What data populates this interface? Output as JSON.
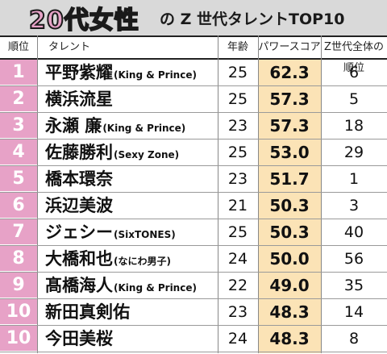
{
  "title": {
    "main": "20代女性",
    "sub": "の Z 世代タレントTOP10"
  },
  "columns": {
    "rank": "順位",
    "talent": "タレント",
    "age": "年齢",
    "power": "パワースコア",
    "overall": "Z世代全体の順位"
  },
  "colors": {
    "rank_bg": "#e7a2c7",
    "power_bg": "#fbe3b6",
    "title_bg": "#d9d9d9"
  },
  "rows": [
    {
      "rank": "1",
      "name": "平野紫耀",
      "group": "(King & Prince)",
      "age": "25",
      "power": "62.3",
      "overall": "6"
    },
    {
      "rank": "2",
      "name": "横浜流星",
      "group": "",
      "age": "25",
      "power": "57.3",
      "overall": "5"
    },
    {
      "rank": "3",
      "name": "永瀬 廉",
      "group": "(King & Prince)",
      "age": "23",
      "power": "57.3",
      "overall": "18"
    },
    {
      "rank": "4",
      "name": "佐藤勝利",
      "group": "(Sexy Zone)",
      "age": "25",
      "power": "53.0",
      "overall": "29"
    },
    {
      "rank": "5",
      "name": "橋本環奈",
      "group": "",
      "age": "23",
      "power": "51.7",
      "overall": "1"
    },
    {
      "rank": "6",
      "name": "浜辺美波",
      "group": "",
      "age": "21",
      "power": "50.3",
      "overall": "3"
    },
    {
      "rank": "7",
      "name": "ジェシー",
      "group": "(SixTONES)",
      "age": "25",
      "power": "50.3",
      "overall": "40"
    },
    {
      "rank": "8",
      "name": "大橋和也",
      "group": "(なにわ男子)",
      "age": "24",
      "power": "50.0",
      "overall": "56"
    },
    {
      "rank": "9",
      "name": "髙橋海人",
      "group": "(King & Prince)",
      "age": "22",
      "power": "49.0",
      "overall": "35"
    },
    {
      "rank": "10",
      "name": "新田真剣佑",
      "group": "",
      "age": "23",
      "power": "48.3",
      "overall": "14"
    },
    {
      "rank": "10",
      "name": "今田美桜",
      "group": "",
      "age": "24",
      "power": "48.3",
      "overall": "8"
    }
  ]
}
